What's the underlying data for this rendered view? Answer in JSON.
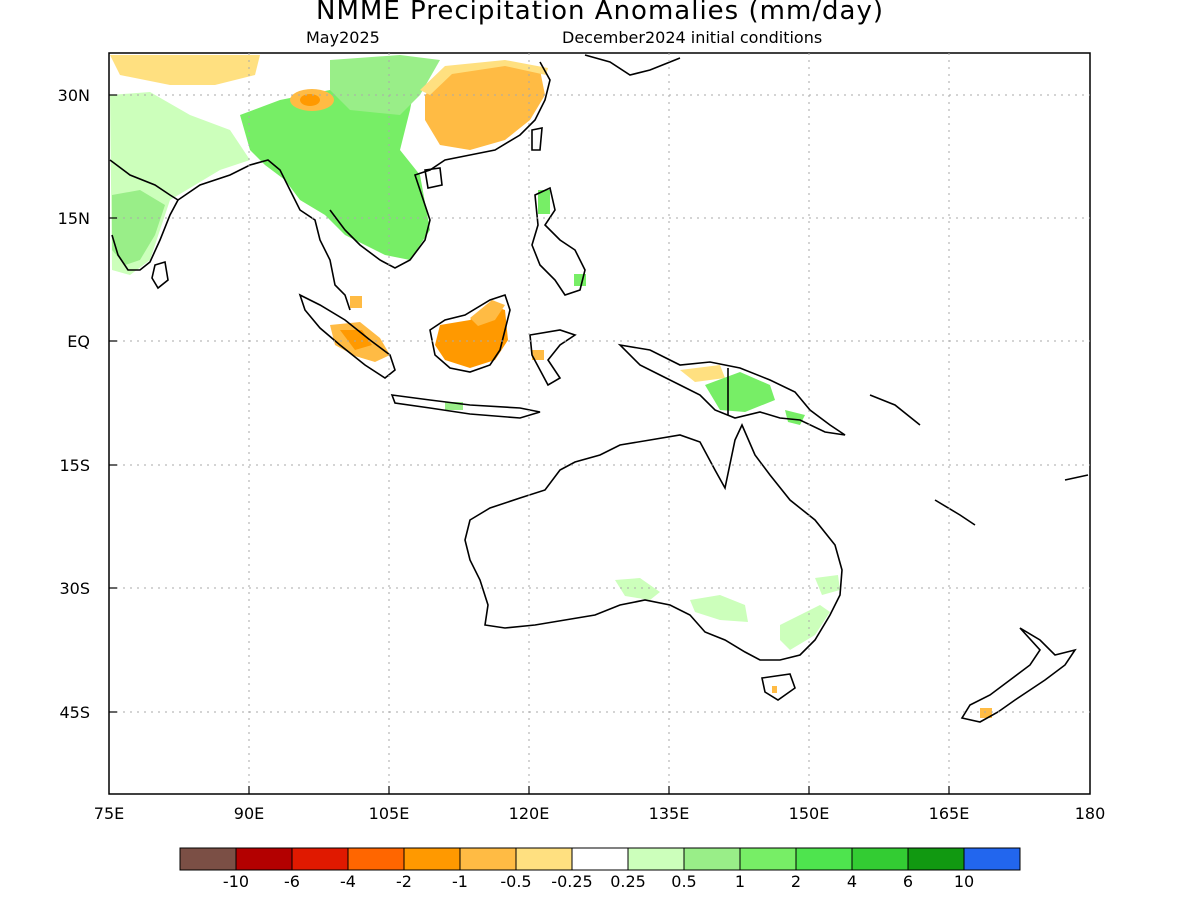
{
  "header": {
    "title": "NMME Precipitation Anomalies (mm/day)",
    "valid_month": "May2025",
    "init_conditions": "December2024 initial conditions"
  },
  "axes": {
    "lat_ticks": [
      "30N",
      "15N",
      "EQ",
      "15S",
      "30S",
      "45S"
    ],
    "lon_ticks": [
      "75E",
      "90E",
      "105E",
      "120E",
      "135E",
      "150E",
      "165E",
      "180"
    ],
    "lon_range": [
      75,
      180
    ],
    "lat_range": [
      -55,
      35
    ],
    "grid": true
  },
  "colorbar": {
    "labels": [
      "-10",
      "-6",
      "-4",
      "-2",
      "-1",
      "-0.5",
      "-0.25",
      "0.25",
      "0.5",
      "1",
      "2",
      "4",
      "6",
      "10"
    ],
    "colors": [
      "#7b4f45",
      "#b30000",
      "#e01900",
      "#ff6600",
      "#ff9900",
      "#ffbb44",
      "#ffe080",
      "#ffffff",
      "#ccffbb",
      "#99ee88",
      "#77ee66",
      "#4ee44e",
      "#33cc33",
      "#119911",
      "#2266ee"
    ]
  },
  "regions": [
    {
      "name": "india-wet",
      "category": "0.25–0.5",
      "color": "#ccffbb"
    },
    {
      "name": "indochina-wet",
      "category": "0.5–2",
      "color": "#77ee66"
    },
    {
      "name": "south-china-dry",
      "category": "-0.5–-1",
      "color": "#ffbb44"
    },
    {
      "name": "borneo-dry",
      "category": "-1–-2",
      "color": "#ff9900"
    },
    {
      "name": "sumatra-dry",
      "category": "-0.5–-2",
      "color": "#ffbb44"
    },
    {
      "name": "new-guinea-wet",
      "category": "0.5–2",
      "color": "#77ee66"
    },
    {
      "name": "se-australia-wet",
      "category": "0.25–0.5",
      "color": "#ccffbb"
    }
  ]
}
